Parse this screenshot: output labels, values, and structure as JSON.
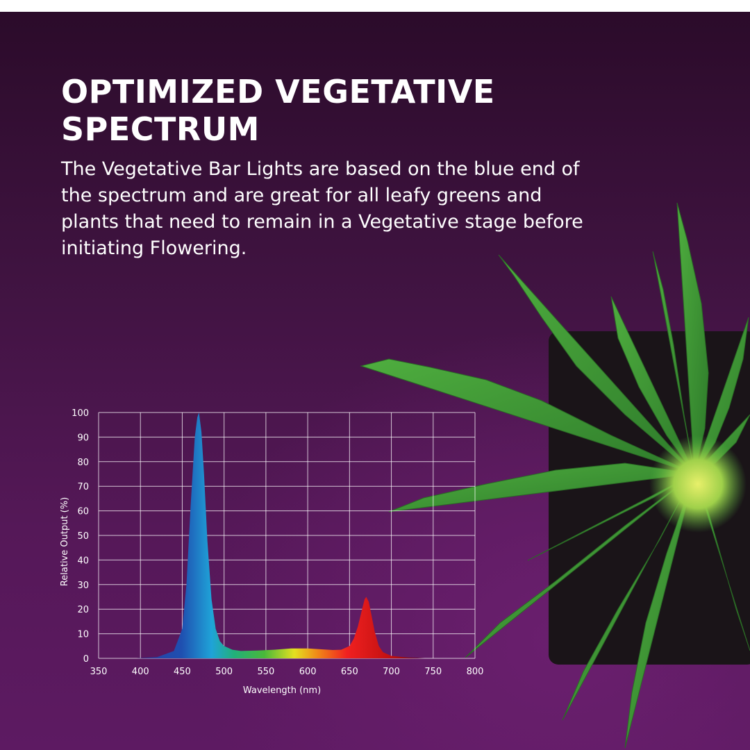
{
  "header": {
    "title": "OPTIMIZED VEGETATIVE SPECTRUM",
    "description": "The Vegetative Bar Lights are based on the blue end of the spectrum and are great for all leafy greens and plants that need to remain in a Vegetative stage before initiating Flowering."
  },
  "colors": {
    "background_top": "#2b0b2a",
    "background_bottom": "#5d1a62",
    "text": "#ffffff",
    "leaf": "#3f9a34"
  },
  "chart_data": {
    "type": "area",
    "xlabel": "Wavelength (nm)",
    "ylabel": "Relative Output (%)",
    "xlim": [
      350,
      800
    ],
    "ylim": [
      0,
      100
    ],
    "xticks": [
      350,
      400,
      450,
      500,
      550,
      600,
      650,
      700,
      750,
      800
    ],
    "yticks": [
      0,
      10,
      20,
      30,
      40,
      50,
      60,
      70,
      80,
      90,
      100
    ],
    "grid": true,
    "series": [
      {
        "x": [
          395,
          420,
          440,
          450,
          455,
          460,
          465,
          468,
          470,
          473,
          476,
          480,
          485,
          490,
          495,
          500,
          510,
          520,
          540,
          560,
          580,
          600,
          620,
          630,
          640,
          650,
          655,
          660,
          665,
          668,
          670,
          673,
          676,
          680,
          685,
          690,
          700,
          720,
          740
        ],
        "y": [
          0,
          0.5,
          3,
          12,
          30,
          62,
          90,
          98,
          100,
          92,
          75,
          48,
          24,
          12,
          7,
          5,
          3.5,
          3,
          3.2,
          3.5,
          4,
          4,
          3.6,
          3.4,
          3.5,
          5,
          8,
          13,
          20,
          24,
          25,
          23,
          18,
          11,
          5,
          2.5,
          1,
          0.3,
          0
        ]
      }
    ]
  }
}
